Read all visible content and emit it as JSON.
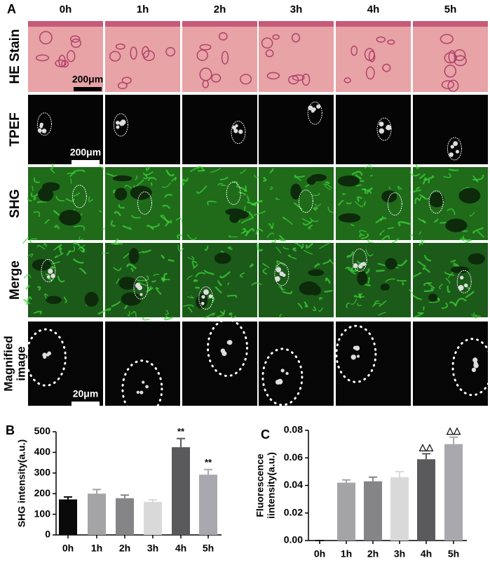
{
  "panel_letters": [
    "A",
    "B",
    "C"
  ],
  "panel_a": {
    "columns": [
      "0h",
      "1h",
      "2h",
      "3h",
      "4h",
      "5h"
    ],
    "rows": [
      [
        "HE Stain"
      ],
      [
        "TPEF"
      ],
      [
        "SHG"
      ],
      [
        "Merge"
      ],
      [
        "Magnified",
        "image"
      ]
    ],
    "scale_bars": [
      "200μm",
      "200μm",
      "20μm"
    ]
  },
  "chart_data": [
    {
      "type": "bar",
      "ylabel": [
        "SHG intensity(a.u.)"
      ],
      "categories": [
        "0h",
        "1h",
        "2h",
        "3h",
        "4h",
        "5h"
      ],
      "values": [
        172,
        200,
        178,
        160,
        425,
        292
      ],
      "errors": [
        12,
        20,
        15,
        10,
        42,
        25
      ],
      "colors": [
        "#0a0a0a",
        "#a4a4a6",
        "#858587",
        "#d9d9d9",
        "#5a5a5c",
        "#a8a8ae"
      ],
      "annotations": [
        null,
        null,
        null,
        null,
        "**",
        "**"
      ],
      "ylim": [
        0,
        500
      ],
      "yticks": [
        0,
        100,
        200,
        300,
        400,
        500
      ]
    },
    {
      "type": "bar",
      "ylabel": [
        "Fluorescence",
        "iintensity(a.u.)"
      ],
      "categories": [
        "0h",
        "1h",
        "2h",
        "3h",
        "4h",
        "5h"
      ],
      "values": [
        0,
        0.042,
        0.043,
        0.046,
        0.059,
        0.07
      ],
      "errors": [
        0,
        0.002,
        0.003,
        0.004,
        0.004,
        0.005
      ],
      "colors": [
        "#0a0a0a",
        "#a4a4a6",
        "#858587",
        "#d9d9d9",
        "#5a5a5c",
        "#a8a8ae"
      ],
      "annotations": [
        null,
        null,
        null,
        null,
        "△△",
        "△△"
      ],
      "ylim": [
        0,
        0.08
      ],
      "yticks": [
        {
          "value": 0,
          "label": "0.00"
        },
        {
          "value": 0.02,
          "label": "0.02"
        },
        {
          "value": 0.04,
          "label": "0.04"
        },
        {
          "value": 0.06,
          "label": "0.06"
        },
        {
          "value": 0.08,
          "label": "0.08"
        }
      ]
    }
  ]
}
